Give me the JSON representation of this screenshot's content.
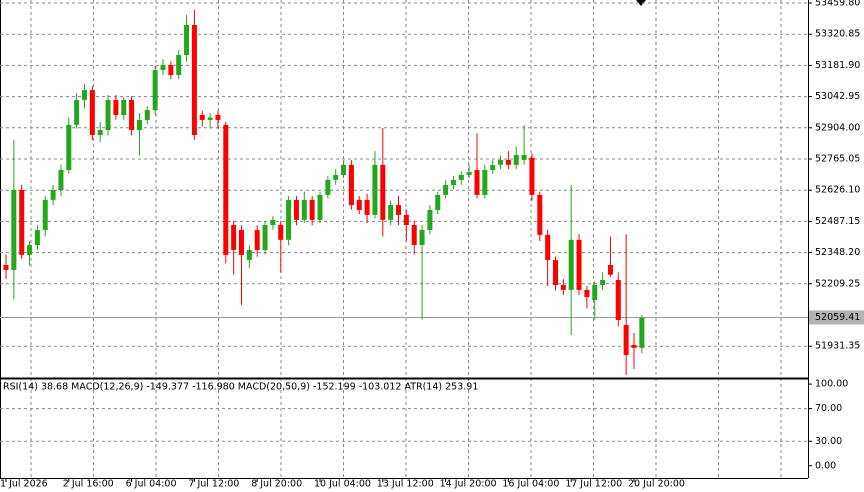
{
  "chart_data": [
    {
      "type": "candlestick",
      "categories": [
        "1 Jul 2026",
        null,
        null,
        null,
        null,
        null,
        null,
        null,
        "2 Jul 16:00",
        null,
        null,
        null,
        null,
        null,
        null,
        null,
        "6 Jul 04:00",
        null,
        null,
        null,
        null,
        null,
        null,
        null,
        "7 Jul 12:00",
        null,
        null,
        null,
        null,
        null,
        null,
        null,
        "8 Jul 20:00",
        null,
        null,
        null,
        null,
        null,
        null,
        null,
        "10 Jul 04:00",
        null,
        null,
        null,
        null,
        null,
        null,
        null,
        "13 Jul 12:00",
        null,
        null,
        null,
        null,
        null,
        null,
        null,
        "14 Jul 20:00",
        null,
        null,
        null,
        null,
        null,
        null,
        null,
        "16 Jul 04:00",
        null,
        null,
        null,
        null,
        null,
        null,
        null,
        "17 Jul 12:00",
        null,
        null,
        null,
        null,
        null,
        null,
        null,
        "20 Jul 20:00",
        null
      ],
      "ohlc": [
        [
          52293,
          52340,
          52230,
          52271
        ],
        [
          52271,
          52850,
          52140,
          52627
        ],
        [
          52627,
          52650,
          52320,
          52338
        ],
        [
          52338,
          52400,
          52290,
          52382
        ],
        [
          52382,
          52470,
          52360,
          52449
        ],
        [
          52449,
          52600,
          52420,
          52583
        ],
        [
          52583,
          52650,
          52560,
          52627
        ],
        [
          52627,
          52740,
          52600,
          52716
        ],
        [
          52716,
          52950,
          52700,
          52917
        ],
        [
          52917,
          53060,
          52900,
          53028
        ],
        [
          53028,
          53100,
          52990,
          53072
        ],
        [
          53072,
          53090,
          52850,
          52872
        ],
        [
          52872,
          52930,
          52840,
          52894
        ],
        [
          52894,
          53050,
          52870,
          53028
        ],
        [
          53028,
          53050,
          52940,
          52961
        ],
        [
          52961,
          53040,
          52940,
          53028
        ],
        [
          53028,
          53045,
          52870,
          52894
        ],
        [
          52894,
          52970,
          52780,
          52939
        ],
        [
          52939,
          53000,
          52920,
          52983
        ],
        [
          52983,
          53180,
          52960,
          53161
        ],
        [
          53161,
          53210,
          53140,
          53184
        ],
        [
          53184,
          53200,
          53120,
          53139
        ],
        [
          53139,
          53250,
          53120,
          53228
        ],
        [
          53228,
          53406,
          53200,
          53362
        ],
        [
          53362,
          53429,
          52850,
          52872
        ],
        [
          52961,
          52980,
          52910,
          52939
        ],
        [
          52939,
          52970,
          52900,
          52950
        ],
        [
          52961,
          52980,
          52900,
          52939
        ],
        [
          52917,
          52930,
          52300,
          52338
        ],
        [
          52471,
          52490,
          52250,
          52360
        ],
        [
          52449,
          52470,
          52115,
          52338
        ],
        [
          52315,
          52380,
          52280,
          52360
        ],
        [
          52449,
          52470,
          52330,
          52360
        ],
        [
          52360,
          52490,
          52340,
          52471
        ],
        [
          52471,
          52510,
          52450,
          52494
        ],
        [
          52471,
          52490,
          52260,
          52405
        ],
        [
          52405,
          52600,
          52380,
          52583
        ],
        [
          52583,
          52600,
          52470,
          52494
        ],
        [
          52494,
          52620,
          52480,
          52583
        ],
        [
          52583,
          52600,
          52470,
          52494
        ],
        [
          52494,
          52620,
          52480,
          52605
        ],
        [
          52605,
          52690,
          52590,
          52672
        ],
        [
          52672,
          52720,
          52650,
          52694
        ],
        [
          52694,
          52760,
          52680,
          52739
        ],
        [
          52739,
          52760,
          52540,
          52560
        ],
        [
          52583,
          52600,
          52520,
          52538
        ],
        [
          52583,
          52610,
          52480,
          52516
        ],
        [
          52516,
          52800,
          52500,
          52739
        ],
        [
          52739,
          52903,
          52420,
          52494
        ],
        [
          52494,
          52580,
          52470,
          52560
        ],
        [
          52560,
          52600,
          52470,
          52516
        ],
        [
          52516,
          52540,
          52400,
          52471
        ],
        [
          52471,
          52490,
          52340,
          52382
        ],
        [
          52382,
          52470,
          52050,
          52449
        ],
        [
          52449,
          52560,
          52430,
          52538
        ],
        [
          52538,
          52620,
          52520,
          52605
        ],
        [
          52605,
          52670,
          52590,
          52649
        ],
        [
          52649,
          52690,
          52630,
          52672
        ],
        [
          52672,
          52710,
          52650,
          52694
        ],
        [
          52694,
          52740,
          52680,
          52707
        ],
        [
          52716,
          52880,
          52590,
          52605
        ],
        [
          52605,
          52740,
          52590,
          52716
        ],
        [
          52716,
          52760,
          52700,
          52739
        ],
        [
          52739,
          52780,
          52720,
          52761
        ],
        [
          52761,
          52800,
          52720,
          52739
        ],
        [
          52739,
          52820,
          52720,
          52783
        ],
        [
          52761,
          52917,
          52740,
          52783
        ],
        [
          52770,
          52790,
          52580,
          52605
        ],
        [
          52605,
          52620,
          52400,
          52427
        ],
        [
          52427,
          52450,
          52200,
          52315
        ],
        [
          52315,
          52330,
          52180,
          52204
        ],
        [
          52204,
          52230,
          52160,
          52182
        ],
        [
          52182,
          52650,
          51981,
          52405
        ],
        [
          52405,
          52430,
          52160,
          52182
        ],
        [
          52182,
          52200,
          52100,
          52150
        ],
        [
          52137,
          52220,
          52050,
          52204
        ],
        [
          52204,
          52260,
          52180,
          52226
        ],
        [
          52293,
          52420,
          52240,
          52250
        ],
        [
          52226,
          52260,
          52020,
          52048
        ],
        [
          52026,
          52430,
          51803,
          51892
        ],
        [
          51937,
          51990,
          51830,
          51924
        ],
        [
          51924,
          52070,
          51900,
          52057
        ]
      ],
      "up_color": "#22a81c",
      "down_color": "#ff0000",
      "ylim": [
        51789.7,
        53473.2
      ],
      "yticks": [
        {
          "value": 53459.8,
          "label": "53459.80"
        },
        53320.85,
        {
          "value": 53181.9,
          "label": "53181.90"
        },
        53042.95,
        {
          "value": 52904,
          "label": "52904.00"
        },
        52765.05,
        {
          "value": 52626.1,
          "label": "52626.10"
        },
        52487.15,
        {
          "value": 52348.2,
          "label": "52348.20"
        },
        52209.25,
        51931.35
      ],
      "last_price": 52059.41,
      "grid": true
    },
    {
      "type": "indicator",
      "title": "RSI(14) 38.68 MACD(12,26,9) -149.377 -116.980 MACD(20,50,9) -152.199 -103.012 ATR(14) 253.91",
      "ylim": [
        -15,
        105
      ],
      "yticks": [
        {
          "value": 100,
          "label": "100.00"
        },
        {
          "value": 70,
          "label": "70.00"
        },
        {
          "value": 30,
          "label": "30.00"
        },
        {
          "value": 0,
          "label": "0.00"
        }
      ]
    }
  ]
}
